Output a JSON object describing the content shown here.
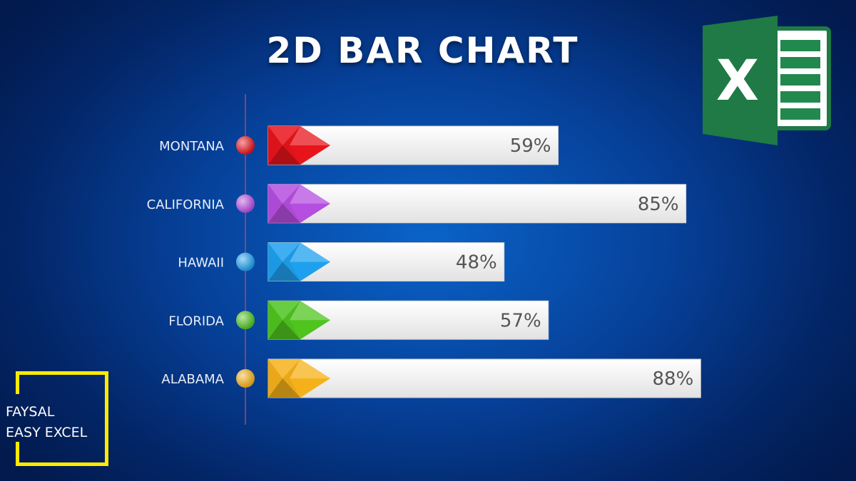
{
  "chart_data": {
    "type": "bar",
    "orientation": "horizontal",
    "title": "2D BAR CHART",
    "categories": [
      "MONTANA",
      "CALIFORNIA",
      "HAWAII",
      "FLORIDA",
      "ALABAMA"
    ],
    "values": [
      59,
      85,
      48,
      57,
      88
    ],
    "value_labels": [
      "59%",
      "85%",
      "48%",
      "57%",
      "88%"
    ],
    "colors": [
      "#e8141b",
      "#b64ee0",
      "#1ea0ee",
      "#4fc41f",
      "#f5b11a"
    ],
    "xlim": [
      0,
      100
    ],
    "grid": false,
    "legend": "none"
  },
  "logo": {
    "letter": "X",
    "name": "excel-icon"
  },
  "watermark": {
    "line1": "FAYSAL",
    "line2": "EASY EXCEL"
  },
  "theme": {
    "background": "#06419a",
    "track": "#f2f2f2",
    "watermark_color": "#ffea00"
  }
}
